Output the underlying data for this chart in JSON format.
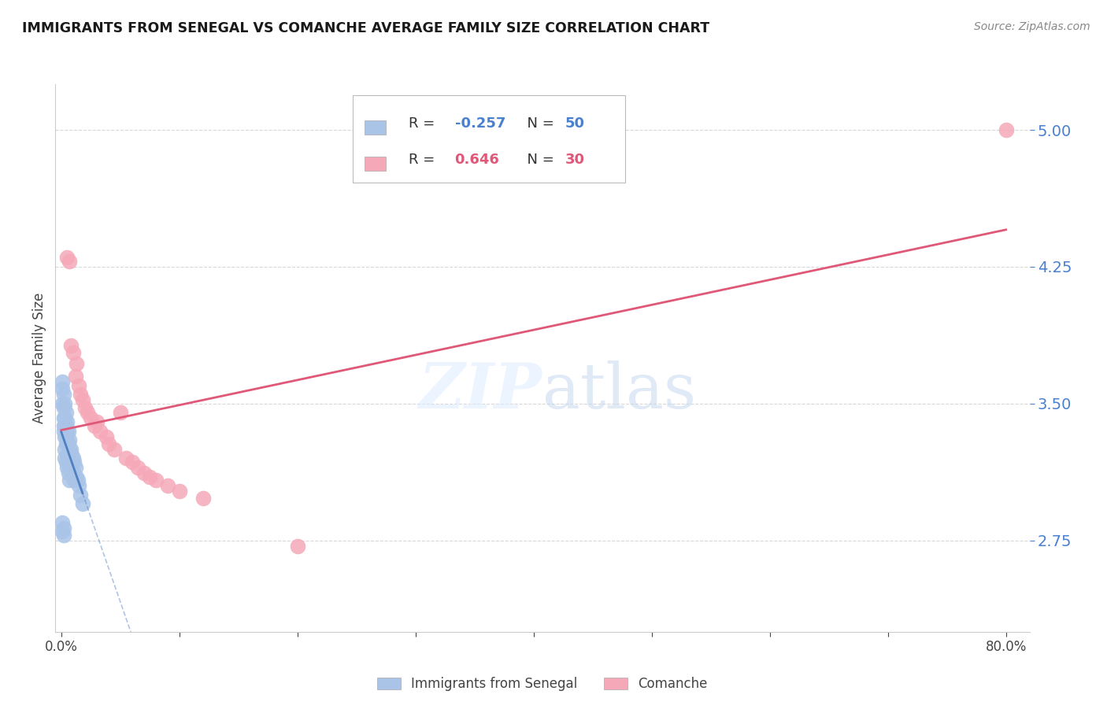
{
  "title": "IMMIGRANTS FROM SENEGAL VS COMANCHE AVERAGE FAMILY SIZE CORRELATION CHART",
  "source": "Source: ZipAtlas.com",
  "ylabel": "Average Family Size",
  "ytick_labels": [
    "2.75",
    "3.50",
    "4.25",
    "5.00"
  ],
  "ytick_values": [
    2.75,
    3.5,
    4.25,
    5.0
  ],
  "ylim": [
    2.25,
    5.25
  ],
  "xlim": [
    -0.005,
    0.82
  ],
  "senegal_R": -0.257,
  "senegal_N": 50,
  "comanche_R": 0.646,
  "comanche_N": 30,
  "senegal_color": "#aac4e8",
  "comanche_color": "#f5a8b8",
  "senegal_line_color": "#5080c0",
  "comanche_line_color": "#e05878",
  "bg_color": "#ffffff",
  "grid_color": "#d8d8d8",
  "ytick_color": "#4a80d0",
  "senegal_x": [
    0.001,
    0.001,
    0.001,
    0.002,
    0.002,
    0.002,
    0.002,
    0.002,
    0.003,
    0.003,
    0.003,
    0.003,
    0.004,
    0.004,
    0.004,
    0.004,
    0.005,
    0.005,
    0.005,
    0.005,
    0.006,
    0.006,
    0.006,
    0.007,
    0.007,
    0.007,
    0.008,
    0.008,
    0.009,
    0.009,
    0.01,
    0.01,
    0.011,
    0.011,
    0.012,
    0.013,
    0.014,
    0.015,
    0.016,
    0.018,
    0.001,
    0.001,
    0.002,
    0.002,
    0.003,
    0.003,
    0.004,
    0.005,
    0.006,
    0.007
  ],
  "senegal_y": [
    3.62,
    3.58,
    3.5,
    3.55,
    3.48,
    3.42,
    3.38,
    3.35,
    3.5,
    3.42,
    3.38,
    3.32,
    3.45,
    3.38,
    3.32,
    3.28,
    3.4,
    3.35,
    3.28,
    3.22,
    3.35,
    3.28,
    3.22,
    3.3,
    3.25,
    3.18,
    3.25,
    3.18,
    3.22,
    3.15,
    3.2,
    3.12,
    3.18,
    3.08,
    3.15,
    3.1,
    3.08,
    3.05,
    3.0,
    2.95,
    2.85,
    2.8,
    2.82,
    2.78,
    3.25,
    3.2,
    3.18,
    3.15,
    3.12,
    3.08
  ],
  "comanche_x": [
    0.005,
    0.007,
    0.008,
    0.01,
    0.012,
    0.013,
    0.015,
    0.016,
    0.018,
    0.02,
    0.022,
    0.025,
    0.028,
    0.03,
    0.033,
    0.038,
    0.04,
    0.045,
    0.05,
    0.055,
    0.06,
    0.065,
    0.07,
    0.075,
    0.08,
    0.09,
    0.1,
    0.12,
    0.2,
    0.8
  ],
  "comanche_y": [
    4.3,
    4.28,
    3.82,
    3.78,
    3.65,
    3.72,
    3.6,
    3.55,
    3.52,
    3.48,
    3.45,
    3.42,
    3.38,
    3.4,
    3.35,
    3.32,
    3.28,
    3.25,
    3.45,
    3.2,
    3.18,
    3.15,
    3.12,
    3.1,
    3.08,
    3.05,
    3.02,
    2.98,
    2.72,
    5.0
  ]
}
